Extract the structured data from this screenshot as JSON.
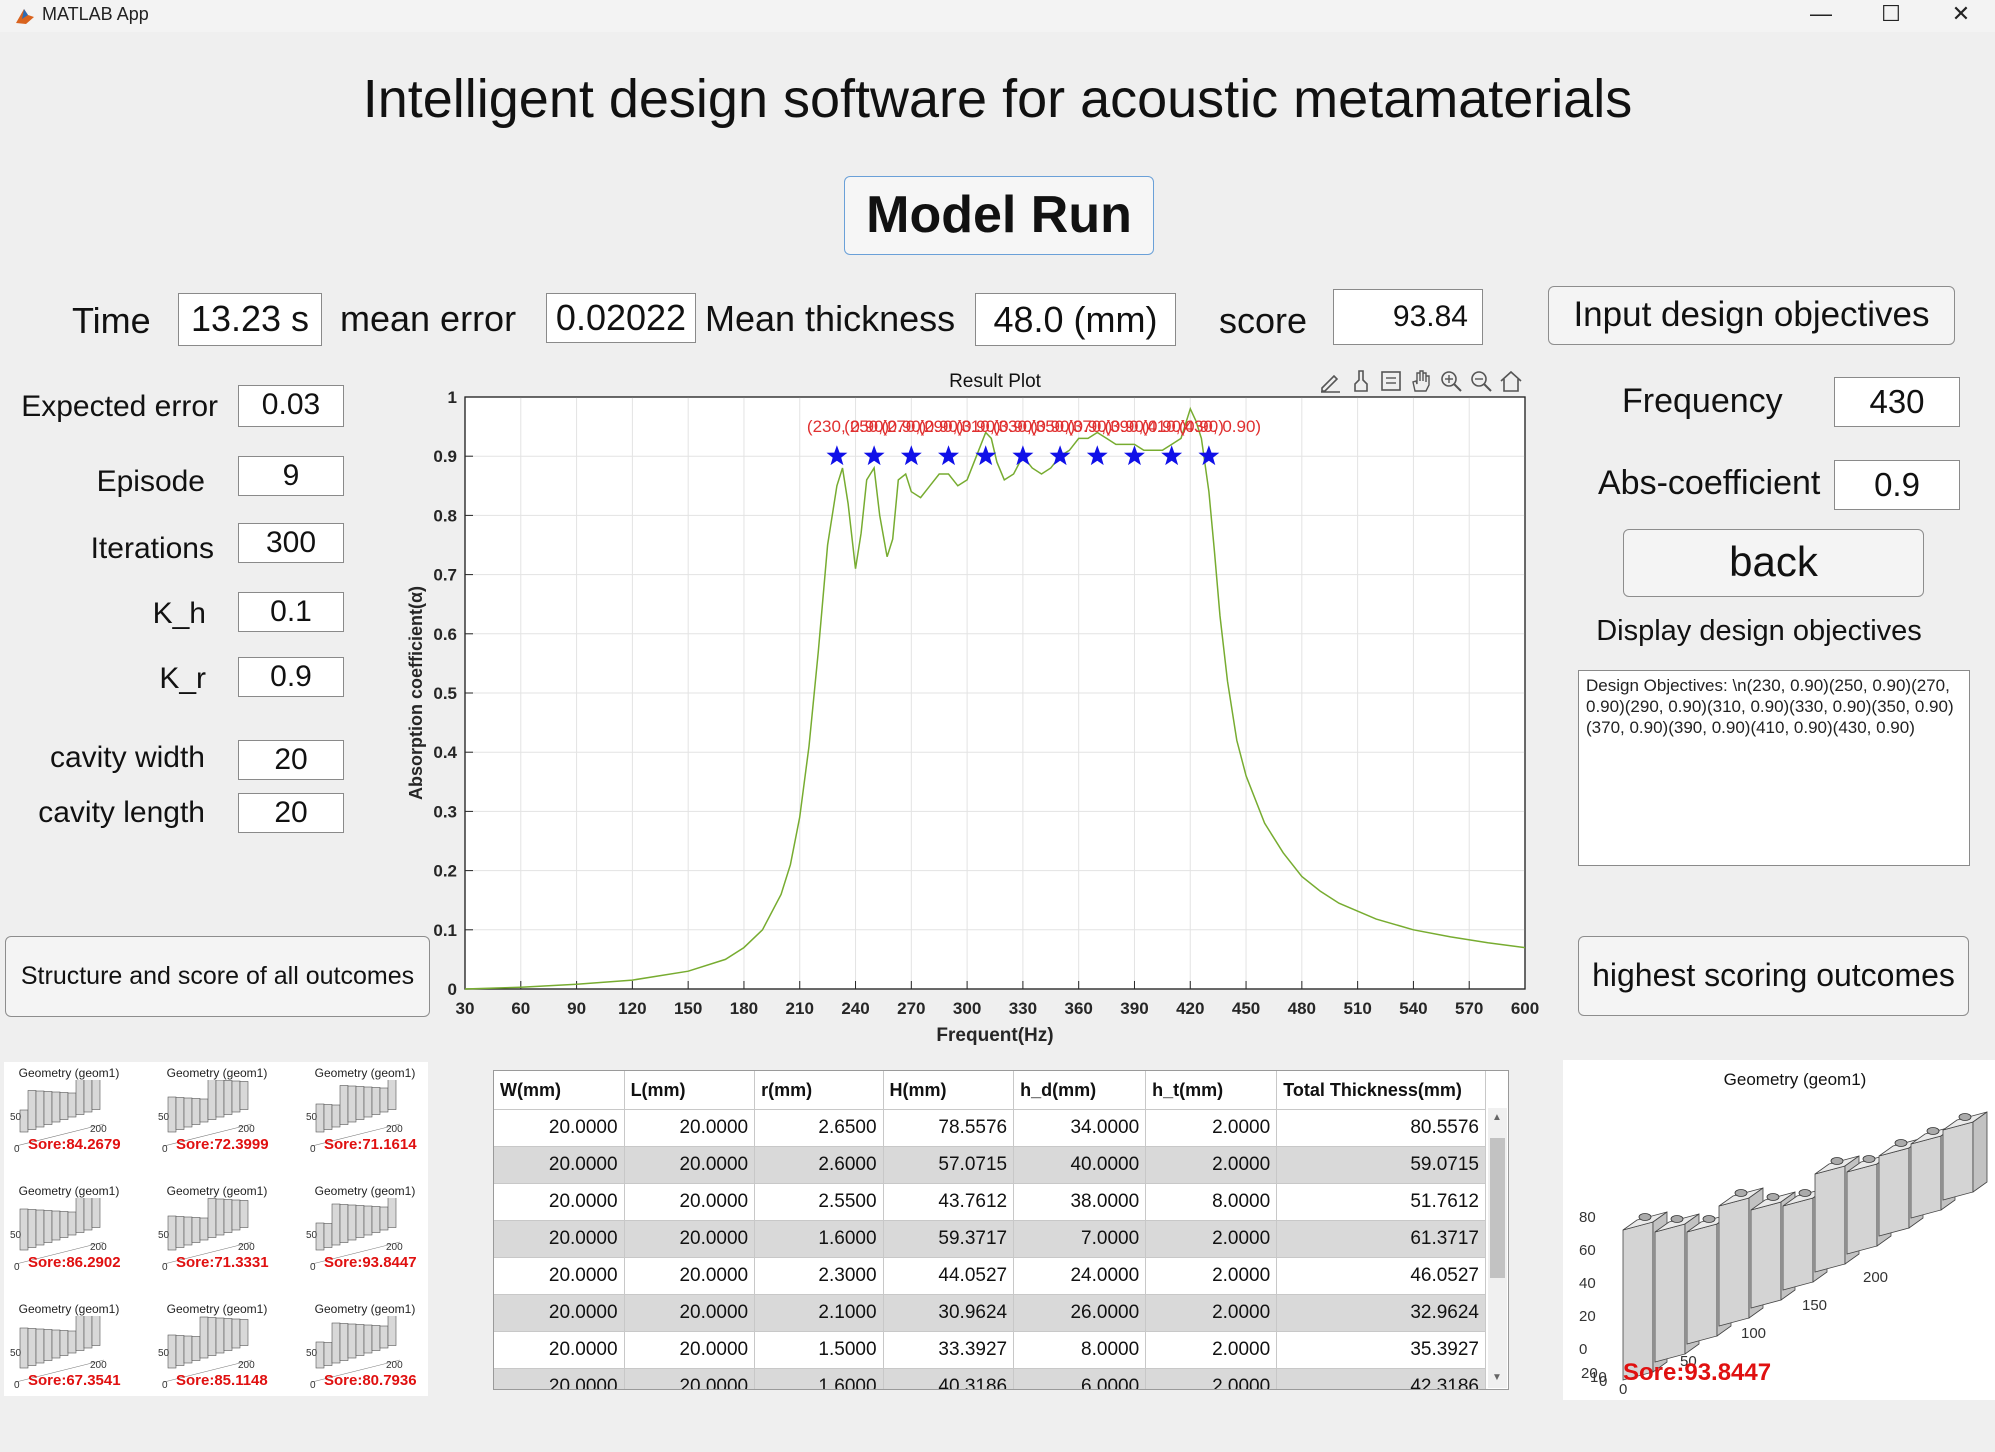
{
  "window": {
    "title": "MATLAB App",
    "minimize_label": "—",
    "maximize_label": "☐",
    "close_label": "✕"
  },
  "app": {
    "title": "Intelligent design software for acoustic metamaterials",
    "model_run_label": "Model Run"
  },
  "stats": {
    "time_label": "Time",
    "time_value": "13.23 s",
    "mean_error_label": "mean error",
    "mean_error_value": "0.02022",
    "mean_thickness_label": "Mean thickness",
    "mean_thickness_value": "48.0  (mm)",
    "score_label": "score",
    "score_value": "93.84"
  },
  "params": [
    {
      "label": "Expected  error",
      "value": "0.03"
    },
    {
      "label": "Episode",
      "value": "9"
    },
    {
      "label": "Iterations",
      "value": "300"
    },
    {
      "label": "K_h",
      "value": "0.1"
    },
    {
      "label": "K_r",
      "value": "0.9"
    },
    {
      "label": "cavity width",
      "value": "20"
    },
    {
      "label": "cavity length",
      "value": "20"
    }
  ],
  "right_panel": {
    "input_button": "Input design objectives",
    "frequency_label": "Frequency",
    "frequency_value": "430",
    "abs_label": "Abs-coefficient",
    "abs_value": "0.9",
    "back_button": "back",
    "display_label": "Display  design objectives",
    "objectives_text": "Design Objectives: \\n(230, 0.90)(250, 0.90)(270, 0.90)(290, 0.90)(310, 0.90)(330, 0.90)(350, 0.90)(370, 0.90)(390, 0.90)(410, 0.90)(430, 0.90)",
    "highest_button": "highest scoring  outcomes"
  },
  "left_button": "Structure and score of all outcomes",
  "plot_toolbar": [
    "pen-icon",
    "brush-icon",
    "datatip-icon",
    "pan-hand-icon",
    "zoom-in-icon",
    "zoom-out-icon",
    "home-icon"
  ],
  "chart_data": {
    "type": "line",
    "title": "Result Plot",
    "xlabel": "Frequent(Hz)",
    "ylabel": "Absorption coefficient(α)",
    "xlim": [
      30,
      600
    ],
    "ylim": [
      0,
      1
    ],
    "xticks": [
      30,
      60,
      90,
      120,
      150,
      180,
      210,
      240,
      270,
      300,
      330,
      360,
      390,
      420,
      450,
      480,
      510,
      540,
      570,
      600
    ],
    "yticks": [
      0,
      0.1,
      0.2,
      0.3,
      0.4,
      0.5,
      0.6,
      0.7,
      0.8,
      0.9,
      1
    ],
    "grid": true,
    "line_color": "#77ac30",
    "marker_color": "#1010e8",
    "annotation_color": "#e03030",
    "series": [
      {
        "x": [
          30,
          60,
          90,
          120,
          150,
          170,
          180,
          190,
          200,
          205,
          210,
          215,
          220,
          225,
          230,
          233,
          236,
          240,
          243,
          246,
          250,
          253,
          257,
          260,
          263,
          267,
          270,
          275,
          280,
          285,
          290,
          295,
          300,
          305,
          310,
          313,
          316,
          320,
          325,
          330,
          335,
          340,
          345,
          350,
          355,
          360,
          365,
          370,
          375,
          380,
          385,
          390,
          395,
          400,
          405,
          410,
          415,
          420,
          423,
          426,
          430,
          433,
          436,
          440,
          445,
          450,
          460,
          470,
          480,
          490,
          500,
          520,
          540,
          560,
          580,
          600
        ],
        "y": [
          0.0,
          0.003,
          0.008,
          0.015,
          0.03,
          0.05,
          0.07,
          0.1,
          0.16,
          0.21,
          0.29,
          0.41,
          0.57,
          0.75,
          0.85,
          0.88,
          0.82,
          0.71,
          0.77,
          0.86,
          0.88,
          0.8,
          0.73,
          0.76,
          0.86,
          0.87,
          0.84,
          0.83,
          0.85,
          0.87,
          0.87,
          0.85,
          0.86,
          0.9,
          0.94,
          0.93,
          0.89,
          0.86,
          0.87,
          0.9,
          0.88,
          0.87,
          0.88,
          0.9,
          0.91,
          0.93,
          0.93,
          0.94,
          0.93,
          0.92,
          0.92,
          0.92,
          0.91,
          0.91,
          0.91,
          0.92,
          0.93,
          0.98,
          0.96,
          0.93,
          0.84,
          0.74,
          0.63,
          0.52,
          0.42,
          0.36,
          0.28,
          0.23,
          0.19,
          0.165,
          0.145,
          0.118,
          0.1,
          0.088,
          0.078,
          0.07
        ]
      }
    ],
    "targets": {
      "x": [
        230,
        250,
        270,
        290,
        310,
        330,
        350,
        370,
        390,
        410,
        430
      ],
      "y": [
        0.9,
        0.9,
        0.9,
        0.9,
        0.9,
        0.9,
        0.9,
        0.9,
        0.9,
        0.9,
        0.9
      ],
      "labels": [
        "(230, 0.90)",
        "(250, 0.90)",
        "(270, 0.90)",
        "(290, 0.90)",
        "(310, 0.90)",
        "(330, 0.90)",
        "(350, 0.90)",
        "(370, 0.90)",
        "(390, 0.90)",
        "(410, 0.90)",
        "(430, 0.90)"
      ]
    }
  },
  "table": {
    "headers": [
      "W(mm)",
      "L(mm)",
      "r(mm)",
      "H(mm)",
      "h_d(mm)",
      "h_t(mm)",
      "Total Thickness(mm)"
    ],
    "rows": [
      [
        "20.0000",
        "20.0000",
        "2.6500",
        "78.5576",
        "34.0000",
        "2.0000",
        "80.5576"
      ],
      [
        "20.0000",
        "20.0000",
        "2.6000",
        "57.0715",
        "40.0000",
        "2.0000",
        "59.0715"
      ],
      [
        "20.0000",
        "20.0000",
        "2.5500",
        "43.7612",
        "38.0000",
        "8.0000",
        "51.7612"
      ],
      [
        "20.0000",
        "20.0000",
        "1.6000",
        "59.3717",
        "7.0000",
        "2.0000",
        "61.3717"
      ],
      [
        "20.0000",
        "20.0000",
        "2.3000",
        "44.0527",
        "24.0000",
        "2.0000",
        "46.0527"
      ],
      [
        "20.0000",
        "20.0000",
        "2.1000",
        "30.9624",
        "26.0000",
        "2.0000",
        "32.9624"
      ],
      [
        "20.0000",
        "20.0000",
        "1.5000",
        "33.3927",
        "8.0000",
        "2.0000",
        "35.3927"
      ],
      [
        "20.0000",
        "20.0000",
        "1.6000",
        "40.3186",
        "6.0000",
        "2.0000",
        "42.3186"
      ]
    ]
  },
  "thumbnails": {
    "title": "Geometry (geom1)",
    "scores": [
      "Sore:84.2679",
      "Sore:72.3999",
      "Sore:71.1614",
      "Sore:86.2902",
      "Sore:71.3331",
      "Sore:93.8447",
      "Sore:67.3541",
      "Sore:85.1148",
      "Sore:80.7936"
    ]
  },
  "best_geometry": {
    "title": "Geometry (geom1)",
    "score": "Sore:93.8447",
    "z_ticks": [
      "80",
      "60",
      "40",
      "20",
      "0"
    ],
    "x_ticks": [
      "200",
      "150",
      "100",
      "50",
      "0"
    ],
    "y_ticks": [
      "20",
      "10",
      "0"
    ]
  }
}
